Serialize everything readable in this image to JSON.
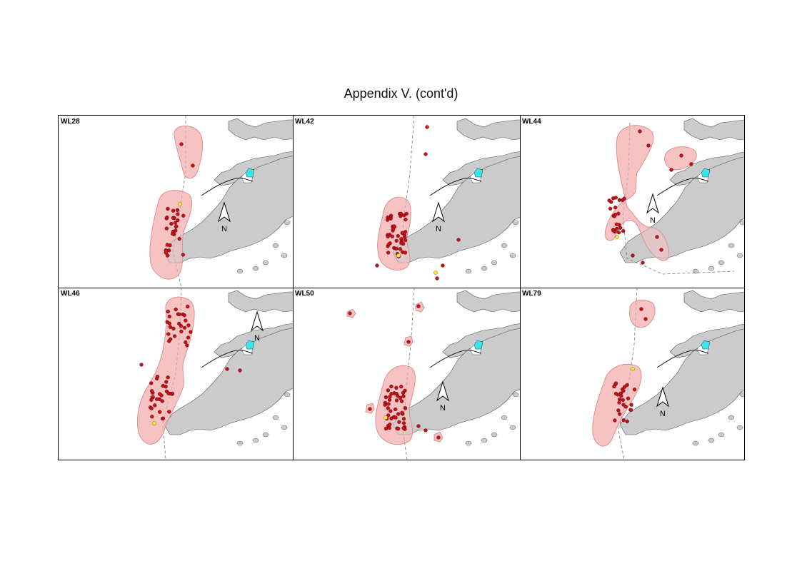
{
  "title": "Appendix V.  (cont'd)",
  "north_label": "N",
  "colors": {
    "land": "#cbcbcb",
    "range": "#f5c2c2",
    "sighting": "#c8101a",
    "highlight": "#ffea3a",
    "airport": "#35e6ee"
  },
  "panels": [
    {
      "id": "WL28"
    },
    {
      "id": "WL42"
    },
    {
      "id": "WL44"
    },
    {
      "id": "WL46"
    },
    {
      "id": "WL50"
    },
    {
      "id": "WL79"
    }
  ]
}
